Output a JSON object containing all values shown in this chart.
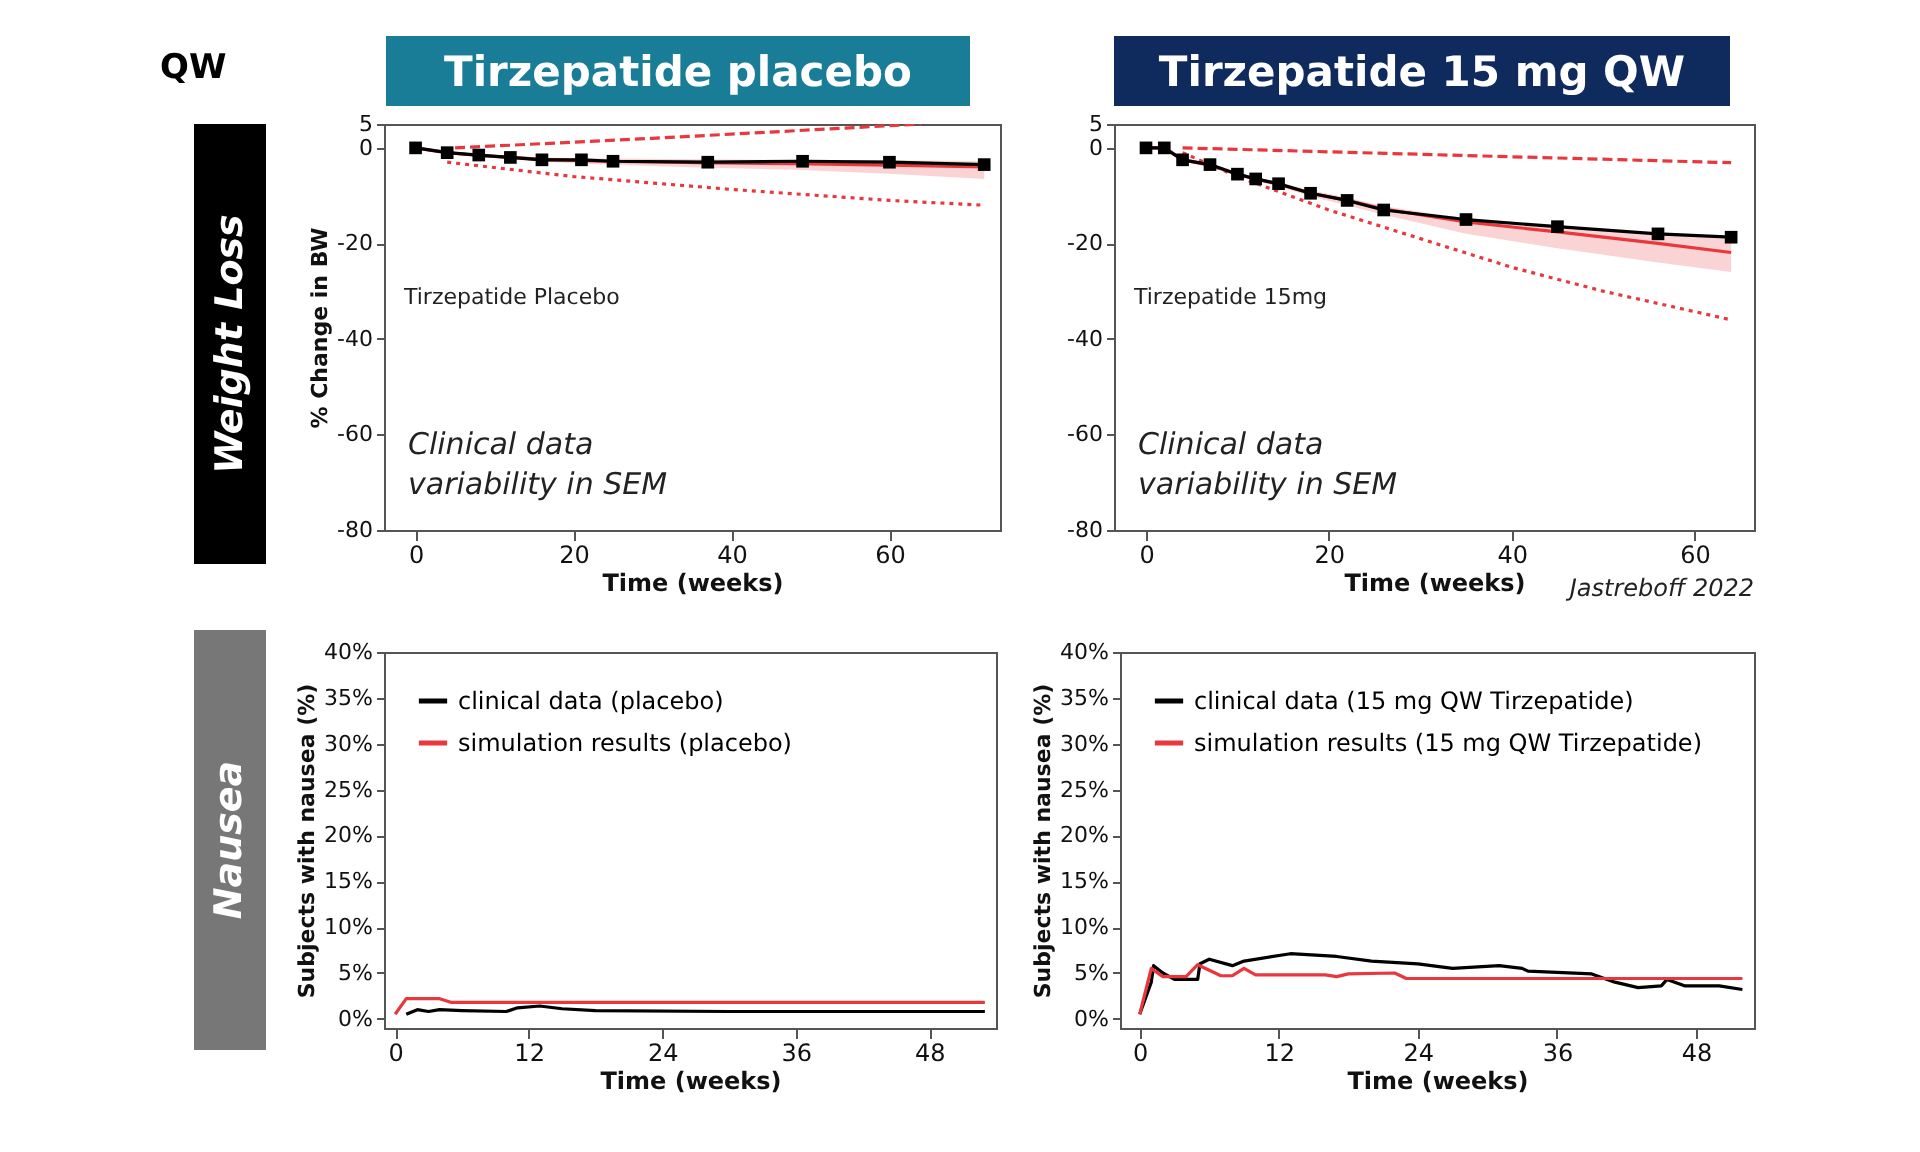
{
  "chart_data": [
    {
      "type": "line",
      "title": "Tirzepatide placebo",
      "ylabel": "% Change in BW",
      "xlabel": "Time (weeks)",
      "xlim": [
        -4,
        74
      ],
      "xticks": [
        0,
        20,
        40,
        60
      ],
      "ylim": [
        -80,
        5
      ],
      "yticks": [
        5,
        0,
        -20,
        -40,
        -60,
        -80
      ],
      "grid": false,
      "legend": false,
      "annotations": [
        "QW",
        "Weight Loss",
        "Tirzepatide Placebo",
        "Clinical data variability in SEM"
      ],
      "series": [
        {
          "color": "#e8383d",
          "line_style": "solid",
          "x": [
            0,
            4,
            8,
            12,
            16,
            20,
            24,
            36,
            48,
            60,
            72
          ],
          "values": [
            0,
            -1,
            -1.6,
            -2,
            -2.4,
            -2.6,
            -2.8,
            -3.1,
            -3.3,
            -3.6,
            -4
          ],
          "lower": [
            0,
            -1.2,
            -1.9,
            -2.4,
            -2.9,
            -3.2,
            -3.5,
            -4.1,
            -4.6,
            -5.4,
            -6.5
          ],
          "upper": [
            0,
            -0.9,
            -1.4,
            -1.7,
            -2,
            -2.1,
            -2.2,
            -2.4,
            -2.5,
            -2.6,
            -2.8
          ]
        },
        {
          "color": "#e8383d",
          "line_style": "dashed",
          "x": [
            5,
            30,
            64
          ],
          "values": [
            0,
            2,
            5
          ]
        },
        {
          "color": "#e8383d",
          "line_style": "dotted",
          "x": [
            4,
            20,
            40,
            60,
            72
          ],
          "values": [
            -3,
            -6,
            -8.7,
            -11,
            -12
          ]
        },
        {
          "color": "#000000",
          "line_style": "solid",
          "marker": "square",
          "x": [
            0,
            4,
            8,
            12,
            16,
            21,
            25,
            37,
            49,
            60,
            72
          ],
          "values": [
            0,
            -1,
            -1.5,
            -2,
            -2.5,
            -2.5,
            -2.8,
            -3,
            -2.8,
            -3,
            -3.5
          ]
        }
      ]
    },
    {
      "type": "line",
      "title": "Tirzepatide 15 mg QW",
      "xlabel": "Time (weeks)",
      "xlim": [
        -3.5,
        66.5
      ],
      "xticks": [
        0,
        20,
        40,
        60
      ],
      "ylim": [
        -80,
        5
      ],
      "yticks": [
        5,
        0,
        -20,
        -40,
        -60,
        -80
      ],
      "grid": false,
      "legend": false,
      "annotations": [
        "Tirzepatide 15mg",
        "Clinical data variability in SEM",
        "Jastreboff 2022"
      ],
      "series": [
        {
          "color": "#e8383d",
          "line_style": "solid",
          "x": [
            0,
            2,
            4,
            7,
            10,
            12,
            14.5,
            18,
            22,
            26,
            35,
            45,
            56,
            64
          ],
          "values": [
            0,
            0,
            -2.5,
            -3.6,
            -5.5,
            -6.5,
            -7.6,
            -9.5,
            -11,
            -12.8,
            -15.5,
            -17.6,
            -20,
            -21.9
          ],
          "lower": [
            0,
            0,
            -2.6,
            -3.8,
            -5.8,
            -6.9,
            -8.1,
            -10.2,
            -12,
            -14,
            -18,
            -21,
            -24,
            -26
          ],
          "upper": [
            0,
            0,
            -2.4,
            -3.4,
            -5.2,
            -6.1,
            -7.1,
            -8.9,
            -10.4,
            -12.2,
            -14.8,
            -16.4,
            -18,
            -18.7
          ]
        },
        {
          "color": "#e8383d",
          "line_style": "dashed",
          "x": [
            4,
            64
          ],
          "values": [
            0,
            -3.1
          ]
        },
        {
          "color": "#e8383d",
          "line_style": "dotted",
          "x": [
            4,
            10,
            20,
            30,
            40,
            50,
            64
          ],
          "values": [
            -1,
            -6,
            -13,
            -19,
            -25,
            -30,
            -36
          ]
        },
        {
          "color": "#000000",
          "line_style": "solid",
          "marker": "square",
          "x": [
            0,
            2,
            4,
            7,
            10,
            12,
            14.5,
            18,
            22,
            26,
            35,
            45,
            56,
            64
          ],
          "values": [
            0,
            0,
            -2.5,
            -3.5,
            -5.5,
            -6.5,
            -7.5,
            -9.5,
            -11,
            -13,
            -15,
            -16.5,
            -18,
            -18.7
          ]
        }
      ]
    },
    {
      "type": "line",
      "ylabel": "Subjects with nausea (%)",
      "xlabel": "Time (weeks)",
      "xlim": [
        -1,
        54
      ],
      "xticks": [
        0,
        12,
        24,
        36,
        48
      ],
      "ylim": [
        -1,
        40
      ],
      "yticks": [
        {
          "value": 0,
          "label": "0%"
        },
        {
          "value": 5,
          "label": "5%"
        },
        {
          "value": 10,
          "label": "10%"
        },
        {
          "value": 15,
          "label": "15%"
        },
        {
          "value": 20,
          "label": "20%"
        },
        {
          "value": 25,
          "label": "25%"
        },
        {
          "value": 30,
          "label": "30%"
        },
        {
          "value": 35,
          "label": "35%"
        },
        {
          "value": 40,
          "label": "40%"
        }
      ],
      "grid": false,
      "legend": "top left",
      "annotations": [
        "Nausea"
      ],
      "series": [
        {
          "name": "clinical data (placebo)",
          "color": "#000000",
          "line_style": "solid",
          "x": [
            1,
            2,
            3,
            4,
            6,
            10,
            11,
            13,
            15,
            18,
            30,
            53
          ],
          "values": [
            0.5,
            1,
            0.8,
            1,
            0.9,
            0.8,
            1.2,
            1.4,
            1.1,
            0.9,
            0.8,
            0.8
          ]
        },
        {
          "name": "simulation results (placebo)",
          "color": "#e8383d",
          "line_style": "solid",
          "x": [
            0,
            1,
            4,
            5,
            53
          ],
          "values": [
            0.5,
            2.2,
            2.2,
            1.8,
            1.8
          ]
        }
      ]
    },
    {
      "type": "line",
      "ylabel": "Subjects with nausea (%)",
      "xlabel": "Time (weeks)",
      "xlim": [
        -1.7,
        53
      ],
      "xticks": [
        0,
        12,
        24,
        36,
        48
      ],
      "ylim": [
        -1,
        40
      ],
      "yticks": [
        {
          "value": 0,
          "label": "0%"
        },
        {
          "value": 5,
          "label": "5%"
        },
        {
          "value": 10,
          "label": "10%"
        },
        {
          "value": 15,
          "label": "15%"
        },
        {
          "value": 20,
          "label": "20%"
        },
        {
          "value": 25,
          "label": "25%"
        },
        {
          "value": 30,
          "label": "30%"
        },
        {
          "value": 35,
          "label": "35%"
        },
        {
          "value": 40,
          "label": "40%"
        }
      ],
      "grid": false,
      "legend": "top left",
      "series": [
        {
          "name": "clinical data (15 mg QW Tirzepatide)",
          "color": "#000000",
          "line_style": "solid",
          "x": [
            0,
            1,
            1.2,
            2,
            3,
            5,
            5.2,
            6,
            8,
            9,
            13,
            17,
            20,
            24,
            27,
            31,
            33,
            33.5,
            39,
            41,
            43,
            45,
            45.5,
            47,
            50,
            52
          ],
          "values": [
            0.5,
            4,
            5.8,
            5,
            4.3,
            4.3,
            6,
            6.5,
            5.8,
            6.3,
            7.1,
            6.8,
            6.3,
            6,
            5.5,
            5.8,
            5.5,
            5.2,
            4.9,
            4,
            3.4,
            3.6,
            4.3,
            3.6,
            3.6,
            3.2
          ]
        },
        {
          "name": "simulation results (15 mg QW Tirzepatide)",
          "color": "#e8383d",
          "line_style": "solid",
          "x": [
            0,
            1,
            2,
            4,
            5,
            7,
            8,
            9,
            10,
            16,
            17,
            18,
            22,
            23,
            52
          ],
          "values": [
            0.5,
            5.5,
            4.6,
            4.6,
            5.9,
            4.7,
            4.7,
            5.5,
            4.8,
            4.8,
            4.6,
            4.9,
            5,
            4.4,
            4.4
          ]
        }
      ]
    }
  ]
}
